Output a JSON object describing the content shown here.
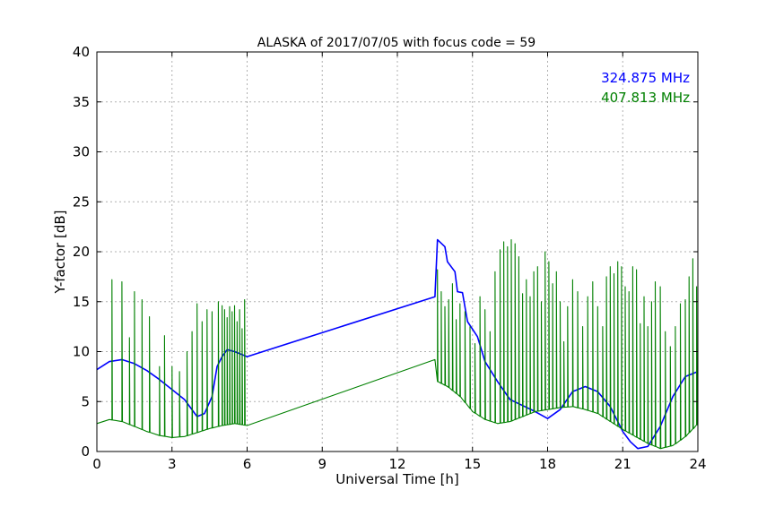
{
  "chart_data": {
    "type": "line",
    "title": "ALASKA of 2017/07/05 with focus code = 59",
    "xlabel": "Universal Time [h]",
    "ylabel": "Y-factor [dB]",
    "xlim": [
      0,
      24
    ],
    "ylim": [
      0,
      40
    ],
    "xticks": [
      "0",
      "3",
      "6",
      "9",
      "12",
      "15",
      "18",
      "21",
      "24"
    ],
    "yticks": [
      "0",
      "5",
      "10",
      "15",
      "20",
      "25",
      "30",
      "35",
      "40"
    ],
    "grid": true,
    "legend_placement": "top-right",
    "series": [
      {
        "name": "324.875 MHz",
        "color": "#0000ff",
        "x": [
          0,
          0.5,
          1,
          1.5,
          2,
          2.5,
          3,
          3.5,
          4,
          4.3,
          4.6,
          4.8,
          5,
          5.2,
          5.5,
          6,
          13.5,
          13.6,
          13.9,
          14.0,
          14.3,
          14.4,
          14.6,
          14.8,
          15.2,
          15.5,
          16,
          16.5,
          17,
          17.5,
          18,
          18.5,
          19,
          19.5,
          20,
          20.5,
          21,
          21.3,
          21.6,
          22,
          22.5,
          23,
          23.5,
          24
        ],
        "y": [
          8.2,
          9.0,
          9.2,
          8.8,
          8.1,
          7.2,
          6.2,
          5.2,
          3.5,
          3.8,
          5.5,
          8.5,
          9.5,
          10.2,
          10.0,
          9.5,
          15.5,
          21.2,
          20.5,
          19.0,
          18.0,
          16.0,
          15.9,
          13.0,
          11.5,
          9.0,
          7.0,
          5.2,
          4.6,
          4.0,
          3.3,
          4.2,
          6.0,
          6.5,
          6.0,
          4.5,
          2.0,
          1.0,
          0.3,
          0.5,
          2.5,
          5.5,
          7.5,
          8.0
        ]
      },
      {
        "name": "407.813 MHz",
        "color": "#008000",
        "x": [
          0,
          0.5,
          1,
          1.5,
          2,
          2.5,
          3,
          3.5,
          4,
          4.5,
          5,
          5.5,
          6,
          13.5,
          13.6,
          14,
          14.5,
          15,
          15.5,
          16,
          16.5,
          17,
          17.5,
          18,
          18.5,
          19,
          19.5,
          20,
          20.5,
          21,
          21.5,
          22,
          22.5,
          23,
          23.5,
          24
        ],
        "y": [
          2.8,
          3.2,
          3.0,
          2.5,
          2.0,
          1.6,
          1.4,
          1.5,
          1.9,
          2.3,
          2.6,
          2.8,
          2.6,
          9.2,
          7.0,
          6.5,
          5.5,
          4.0,
          3.2,
          2.8,
          3.0,
          3.5,
          4.0,
          4.2,
          4.4,
          4.5,
          4.2,
          3.8,
          3.0,
          2.2,
          1.5,
          0.8,
          0.3,
          0.6,
          1.5,
          2.8
        ],
        "spike_times": [
          0.6,
          1.0,
          1.3,
          1.5,
          1.8,
          2.1,
          2.5,
          2.7,
          3.0,
          3.3,
          3.6,
          3.8,
          4.0,
          4.2,
          4.4,
          4.6,
          4.85,
          5.0,
          5.1,
          5.2,
          5.3,
          5.4,
          5.5,
          5.6,
          5.7,
          5.8,
          5.9,
          13.6,
          13.75,
          13.9,
          14.05,
          14.2,
          14.35,
          14.5,
          14.7,
          14.9,
          15.1,
          15.3,
          15.5,
          15.7,
          15.9,
          16.1,
          16.25,
          16.4,
          16.55,
          16.7,
          16.85,
          17.0,
          17.15,
          17.3,
          17.45,
          17.6,
          17.75,
          17.9,
          18.05,
          18.2,
          18.35,
          18.5,
          18.65,
          18.8,
          19.0,
          19.2,
          19.4,
          19.6,
          19.8,
          20.0,
          20.2,
          20.35,
          20.5,
          20.65,
          20.8,
          20.95,
          21.1,
          21.25,
          21.4,
          21.55,
          21.7,
          21.85,
          22.0,
          22.15,
          22.3,
          22.5,
          22.7,
          22.9,
          23.1,
          23.3,
          23.5,
          23.65,
          23.8,
          23.95
        ],
        "spike_peaks": [
          17.2,
          17.0,
          11.4,
          16.0,
          15.2,
          13.5,
          8.5,
          11.6,
          8.5,
          8.0,
          10.0,
          12.0,
          14.8,
          13.0,
          14.2,
          14.0,
          15.0,
          14.6,
          14.2,
          13.4,
          14.5,
          14.0,
          14.6,
          13.0,
          14.2,
          12.3,
          15.2,
          18.2,
          16.0,
          14.5,
          15.2,
          16.8,
          13.2,
          14.8,
          14.0,
          12.5,
          10.8,
          15.5,
          14.2,
          12.0,
          18.0,
          20.2,
          21.0,
          20.5,
          21.2,
          20.8,
          19.5,
          15.8,
          17.2,
          15.5,
          18.0,
          18.5,
          15.0,
          20.0,
          19.0,
          16.8,
          18.0,
          15.0,
          11.0,
          14.5,
          17.2,
          16.0,
          12.5,
          15.5,
          17.0,
          14.5,
          12.5,
          17.5,
          18.5,
          17.8,
          19.0,
          18.5,
          16.5,
          16.0,
          18.5,
          18.2,
          12.8,
          15.5,
          12.5,
          15.0,
          17.0,
          16.5,
          12.0,
          10.5,
          12.5,
          14.8,
          15.2,
          17.5,
          19.3,
          16.5
        ]
      }
    ]
  }
}
